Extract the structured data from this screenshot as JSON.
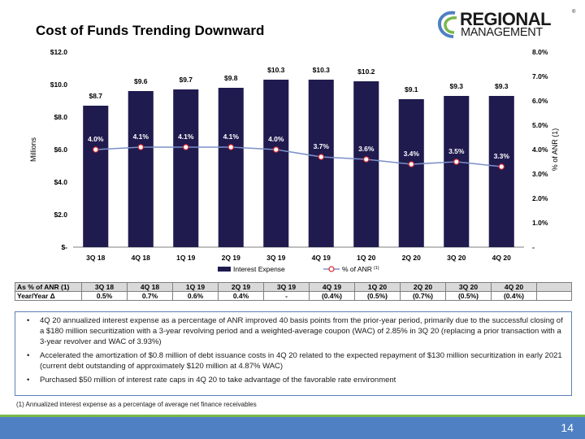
{
  "slide": {
    "title": "Cost of Funds Trending Downward",
    "page_number": "14",
    "footnote": "(1) Annualized interest expense as a percentage of average net finance receivables"
  },
  "logo": {
    "line1": "REGIONAL",
    "line2": "MANAGEMENT",
    "mark": "®"
  },
  "chart_data": {
    "type": "bar",
    "categories": [
      "3Q 18",
      "4Q 18",
      "1Q 19",
      "2Q 19",
      "3Q 19",
      "4Q 19",
      "1Q 20",
      "2Q 20",
      "3Q 20",
      "4Q 20"
    ],
    "series": [
      {
        "name": "Interest Expense",
        "type": "bar",
        "axis": "left",
        "values": [
          8.7,
          9.6,
          9.7,
          9.8,
          10.3,
          10.3,
          10.2,
          9.1,
          9.3,
          9.3
        ],
        "labels": [
          "$8.7",
          "$9.6",
          "$9.7",
          "$9.8",
          "$10.3",
          "$10.3",
          "$10.2",
          "$9.1",
          "$9.3",
          "$9.3"
        ],
        "color": "#1f1b4f"
      },
      {
        "name": "% of ANR",
        "name_superscript": "(1)",
        "type": "line",
        "axis": "right",
        "values": [
          4.0,
          4.1,
          4.1,
          4.1,
          4.0,
          3.7,
          3.6,
          3.4,
          3.5,
          3.3
        ],
        "labels": [
          "4.0%",
          "4.1%",
          "4.1%",
          "4.1%",
          "4.0%",
          "3.7%",
          "3.6%",
          "3.4%",
          "3.5%",
          "3.3%"
        ],
        "color": "#7d90c8",
        "marker_color": "#d9262c"
      }
    ],
    "ylabel": "Millions",
    "y2label": "% of ANR (1)",
    "ylim": [
      0,
      12
    ],
    "y2lim": [
      0,
      8
    ],
    "yticks": [
      0,
      2,
      4,
      6,
      8,
      10,
      12
    ],
    "y2ticks": [
      0,
      1,
      2,
      3,
      4,
      5,
      6,
      7,
      8
    ],
    "ytick_labels": [
      "$-",
      "$2.0",
      "$4.0",
      "$6.0",
      "$8.0",
      "$10.0",
      "$12.0"
    ],
    "y2tick_labels": [
      "-",
      "1.0%",
      "2.0%",
      "3.0%",
      "4.0%",
      "5.0%",
      "6.0%",
      "7.0%",
      "8.0%"
    ],
    "grid": false,
    "legend": "bottom"
  },
  "ratio_table": {
    "header": {
      "label": "As % of ANR (1)",
      "values": [
        "3Q 18",
        "4Q 18",
        "1Q 19",
        "2Q 19",
        "3Q 19",
        "4Q 19",
        "1Q 20",
        "2Q 20",
        "3Q 20",
        "4Q 20"
      ]
    },
    "row": {
      "label": "Year/Year Δ",
      "values": [
        "0.5%",
        "0.7%",
        "0.6%",
        "0.4%",
        "-",
        "(0.4%)",
        "(0.5%)",
        "(0.7%)",
        "(0.5%)",
        "(0.4%)"
      ]
    }
  },
  "bullets": [
    "4Q 20 annualized interest expense as a percentage of ANR improved 40 basis points from the prior-year period, primarily due to the successful closing of a $180 million securitization with a 3-year revolving period and a weighted-average coupon (WAC) of 2.85% in 3Q 20 (replacing a prior transaction with a 3-year revolver and WAC of 3.93%)",
    "Accelerated the amortization of $0.8 million of debt issuance costs in 4Q 20 related to the expected repayment of $130 million securitization in early 2021 (current debt outstanding of approximately $120 million at 4.87% WAC)",
    "Purchased $50 million of interest rate caps in 4Q 20 to take advantage of the favorable rate environment"
  ],
  "colors": {
    "accent_blue": "#4f80c3",
    "accent_green": "#79b84a",
    "bar": "#1f1b4f"
  }
}
